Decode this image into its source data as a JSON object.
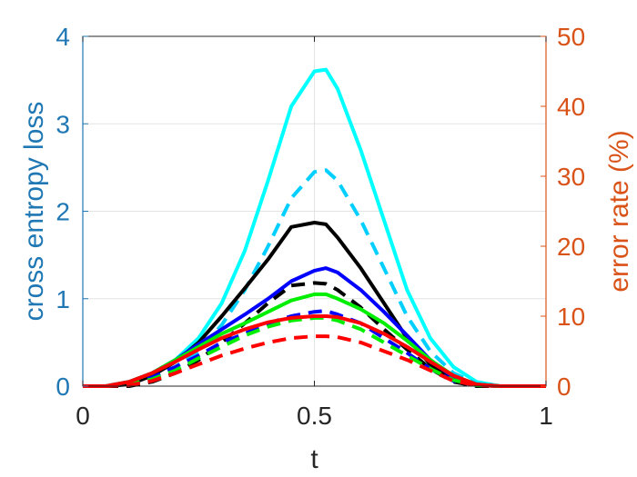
{
  "chart_data": {
    "type": "line",
    "xlabel": "t",
    "ylabel_left": "cross entropy loss",
    "ylabel_right": "error rate (%)",
    "xlim": [
      0,
      1
    ],
    "ylim_left": [
      0,
      4
    ],
    "ylim_right": [
      0,
      50
    ],
    "x_ticks": [
      "0",
      "0.5",
      "1"
    ],
    "y_left_ticks": [
      "0",
      "1",
      "2",
      "3",
      "4"
    ],
    "y_right_ticks": [
      "0",
      "10",
      "20",
      "30",
      "40",
      "50"
    ],
    "grid": true,
    "colors": {
      "left_axis": "#1f77b4",
      "right_axis": "#d95319"
    },
    "x": [
      0,
      0.05,
      0.1,
      0.15,
      0.2,
      0.25,
      0.3,
      0.35,
      0.4,
      0.45,
      0.5,
      0.525,
      0.55,
      0.6,
      0.65,
      0.7,
      0.75,
      0.8,
      0.85,
      0.9,
      0.95,
      1
    ],
    "series": [
      {
        "axis": "left",
        "color": "#00ffff",
        "dash": "solid",
        "values": [
          0,
          0,
          0.05,
          0.15,
          0.3,
          0.55,
          0.95,
          1.55,
          2.35,
          3.2,
          3.6,
          3.62,
          3.4,
          2.7,
          1.9,
          1.1,
          0.55,
          0.22,
          0.05,
          0,
          0,
          0
        ]
      },
      {
        "axis": "left",
        "color": "#00cfff",
        "dash": "dashed",
        "values": [
          0,
          0,
          0.03,
          0.1,
          0.22,
          0.4,
          0.7,
          1.1,
          1.6,
          2.15,
          2.45,
          2.47,
          2.35,
          1.9,
          1.35,
          0.8,
          0.4,
          0.15,
          0.03,
          0,
          0,
          0
        ]
      },
      {
        "axis": "left",
        "color": "#000000",
        "dash": "solid",
        "values": [
          0,
          0,
          0.02,
          0.12,
          0.28,
          0.5,
          0.8,
          1.12,
          1.45,
          1.82,
          1.87,
          1.85,
          1.7,
          1.35,
          0.95,
          0.55,
          0.25,
          0.08,
          0.02,
          0,
          0,
          0
        ]
      },
      {
        "axis": "left",
        "color": "#000000",
        "dash": "dashed",
        "values": [
          0,
          0,
          0,
          0.05,
          0.15,
          0.3,
          0.5,
          0.72,
          0.95,
          1.15,
          1.18,
          1.17,
          1.1,
          0.9,
          0.65,
          0.42,
          0.2,
          0.05,
          0,
          0,
          0,
          0
        ]
      },
      {
        "axis": "left",
        "color": "#0000ff",
        "dash": "solid",
        "values": [
          0,
          0,
          0.05,
          0.15,
          0.3,
          0.48,
          0.65,
          0.82,
          1.0,
          1.2,
          1.32,
          1.35,
          1.3,
          1.1,
          0.85,
          0.58,
          0.3,
          0.1,
          0.02,
          0,
          0,
          0
        ]
      },
      {
        "axis": "left",
        "color": "#0000ff",
        "dash": "dashed",
        "values": [
          0,
          0,
          0.02,
          0.1,
          0.22,
          0.35,
          0.5,
          0.6,
          0.72,
          0.8,
          0.85,
          0.86,
          0.82,
          0.72,
          0.55,
          0.38,
          0.2,
          0.06,
          0.01,
          0,
          0,
          0
        ]
      },
      {
        "axis": "left",
        "color": "#00ee00",
        "dash": "solid",
        "values": [
          0,
          0,
          0.05,
          0.15,
          0.3,
          0.45,
          0.6,
          0.72,
          0.85,
          0.98,
          1.05,
          1.05,
          1.0,
          0.88,
          0.72,
          0.52,
          0.3,
          0.12,
          0.02,
          0,
          0,
          0
        ]
      },
      {
        "axis": "left",
        "color": "#00ee00",
        "dash": "dashed",
        "values": [
          0,
          0,
          0.02,
          0.08,
          0.18,
          0.32,
          0.45,
          0.58,
          0.68,
          0.75,
          0.78,
          0.78,
          0.75,
          0.65,
          0.5,
          0.35,
          0.2,
          0.07,
          0.01,
          0,
          0,
          0
        ]
      },
      {
        "axis": "left",
        "color": "#ff0000",
        "dash": "solid",
        "values": [
          0,
          0,
          0.05,
          0.15,
          0.28,
          0.42,
          0.55,
          0.65,
          0.73,
          0.78,
          0.8,
          0.8,
          0.79,
          0.72,
          0.6,
          0.45,
          0.28,
          0.12,
          0.02,
          0,
          0,
          0
        ]
      },
      {
        "axis": "left",
        "color": "#ff0000",
        "dash": "dashed",
        "values": [
          0,
          0,
          0.01,
          0.06,
          0.15,
          0.25,
          0.35,
          0.43,
          0.5,
          0.55,
          0.57,
          0.57,
          0.56,
          0.5,
          0.4,
          0.3,
          0.18,
          0.06,
          0.01,
          0,
          0,
          0
        ]
      }
    ]
  }
}
